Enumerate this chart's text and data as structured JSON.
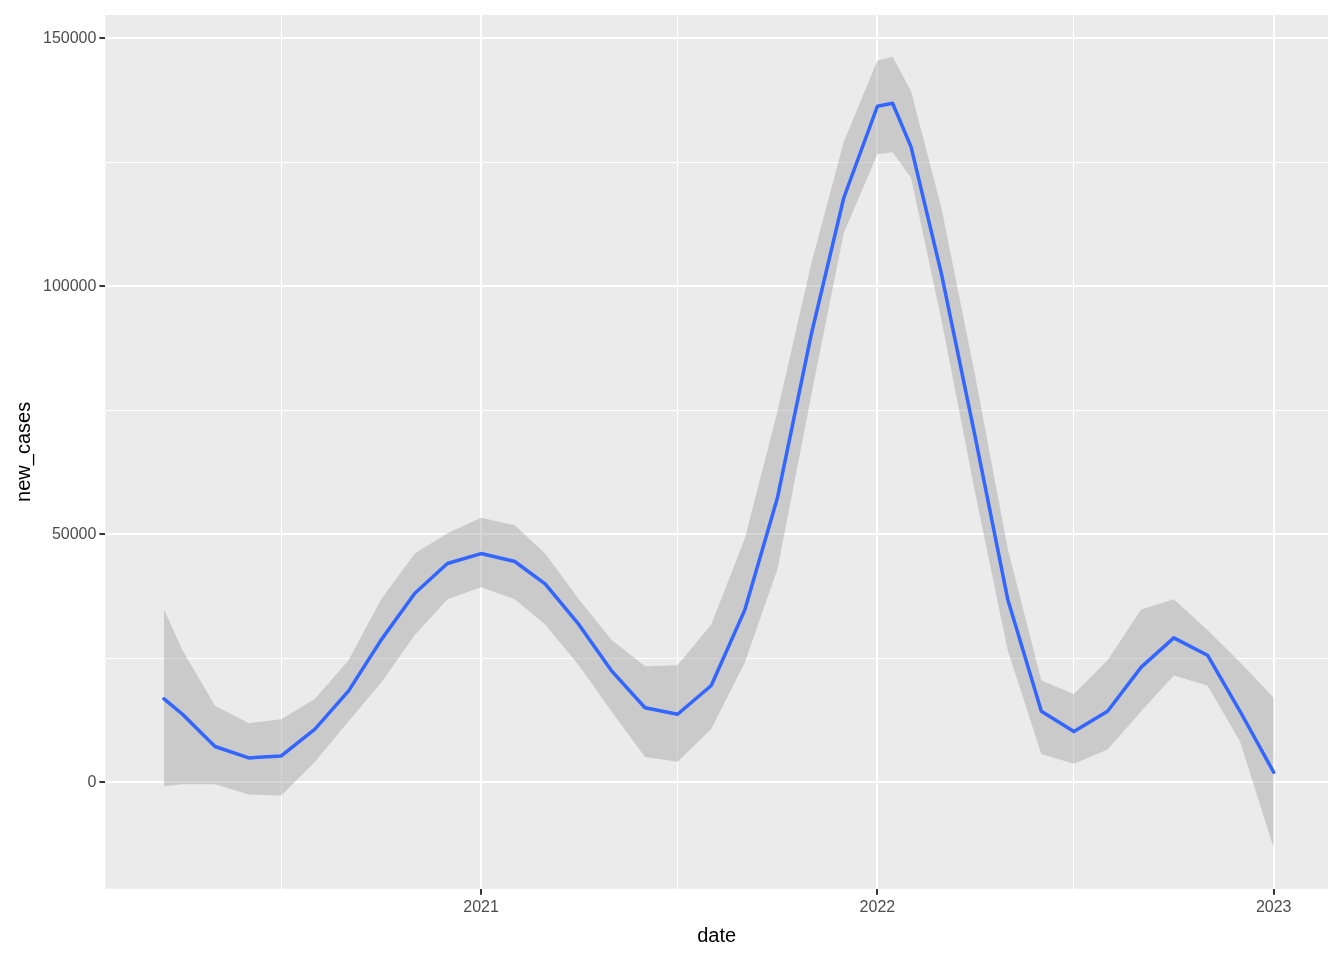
{
  "chart_data": {
    "type": "line",
    "xlabel": "date",
    "ylabel": "new_cases",
    "x": [
      "2020-03-15",
      "2020-04-01",
      "2020-05-01",
      "2020-06-01",
      "2020-07-01",
      "2020-08-01",
      "2020-09-01",
      "2020-10-01",
      "2020-11-01",
      "2020-12-01",
      "2021-01-01",
      "2021-02-01",
      "2021-03-01",
      "2021-04-01",
      "2021-05-01",
      "2021-06-01",
      "2021-07-01",
      "2021-08-01",
      "2021-09-01",
      "2021-10-01",
      "2021-11-01",
      "2021-12-01",
      "2022-01-01",
      "2022-01-15",
      "2022-02-01",
      "2022-03-01",
      "2022-04-01",
      "2022-05-01",
      "2022-06-01",
      "2022-07-01",
      "2022-08-01",
      "2022-09-01",
      "2022-10-01",
      "2022-11-01",
      "2022-12-01",
      "2023-01-01"
    ],
    "series": [
      {
        "color": "#3366ff",
        "values": [
          16800,
          13700,
          7200,
          4900,
          5300,
          10700,
          18400,
          28700,
          38100,
          44100,
          46100,
          44500,
          40000,
          31800,
          22500,
          15000,
          13700,
          19500,
          34800,
          57400,
          90200,
          117800,
          136300,
          136900,
          128100,
          102500,
          69700,
          36900,
          14300,
          10200,
          14300,
          23200,
          29100,
          25600,
          14300,
          2000
        ],
        "lower": [
          -800,
          -400,
          -400,
          -2500,
          -2700,
          4100,
          12300,
          20100,
          29700,
          36900,
          39300,
          36900,
          31800,
          23600,
          14300,
          5100,
          4100,
          10700,
          24200,
          43000,
          77900,
          110700,
          126600,
          127000,
          121900,
          93200,
          58400,
          26600,
          5700,
          3700,
          6600,
          14300,
          21500,
          19500,
          8200,
          -13300
        ],
        "upper": [
          34800,
          26600,
          15400,
          11900,
          12700,
          16800,
          24600,
          36900,
          46100,
          50200,
          53300,
          51800,
          46100,
          36900,
          28700,
          23400,
          23600,
          31800,
          49200,
          74800,
          104500,
          129100,
          145500,
          146300,
          139300,
          115800,
          82000,
          47100,
          20500,
          17800,
          24600,
          34800,
          36900,
          30700,
          24200,
          17000
        ]
      }
    ],
    "xlim": [
      "2020-01-21",
      "2023-02-20"
    ],
    "xticks": [
      {
        "value": "2020-07-01",
        "label": null
      },
      "2021",
      {
        "value": "2021-07-01",
        "label": null
      },
      "2022",
      {
        "value": "2022-07-01",
        "label": null
      },
      "2023"
    ],
    "ylim": [
      -21500,
      154700
    ],
    "yticks": [
      0,
      {
        "value": 25000,
        "label": null
      },
      50000,
      {
        "value": 75000,
        "label": null
      },
      100000,
      {
        "value": 125000,
        "label": null
      },
      150000
    ],
    "grid": true,
    "legend": false,
    "marker": "none",
    "line_style": "solid"
  }
}
